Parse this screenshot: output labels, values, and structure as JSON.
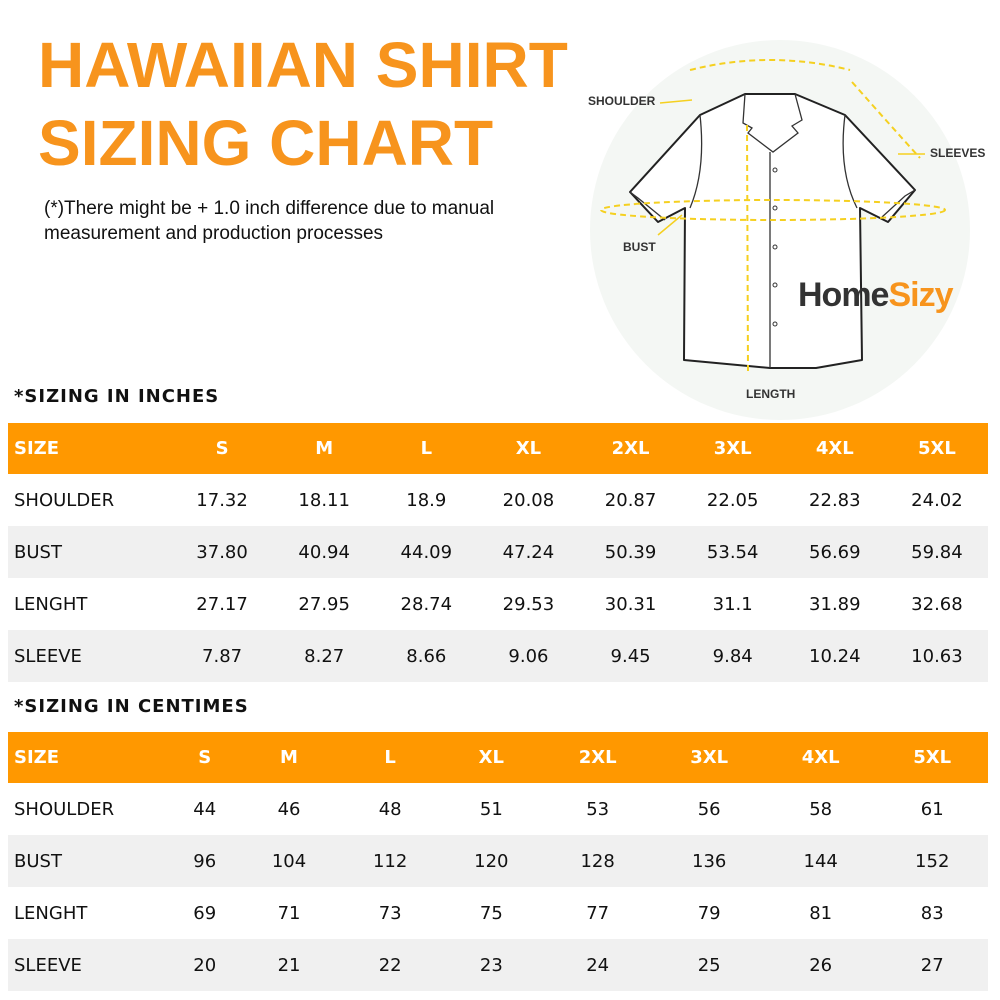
{
  "title": {
    "line1": "HAWAIIAN SHIRT",
    "line2": "SIZING CHART"
  },
  "note": "(*)There might be + 1.0 inch difference due to manual measurement and production processes",
  "illustration": {
    "labels": {
      "shoulder": "SHOULDER",
      "sleeves": "SLEEVES",
      "bust": "BUST",
      "length": "LENGTH"
    },
    "logo": {
      "part1": "Home",
      "part2": "Sizy"
    }
  },
  "colors": {
    "accent": "#ff9800",
    "title": "#f7941d",
    "measure_line": "#f5d020"
  },
  "tables": [
    {
      "title": "*SIZING IN INCHES",
      "headers": [
        "SIZE",
        "S",
        "M",
        "L",
        "XL",
        "2XL",
        "3XL",
        "4XL",
        "5XL"
      ],
      "rows": [
        [
          "SHOULDER",
          "17.32",
          "18.11",
          "18.9",
          "20.08",
          "20.87",
          "22.05",
          "22.83",
          "24.02"
        ],
        [
          "BUST",
          "37.80",
          "40.94",
          "44.09",
          "47.24",
          "50.39",
          "53.54",
          "56.69",
          "59.84"
        ],
        [
          "LENGHT",
          "27.17",
          "27.95",
          "28.74",
          "29.53",
          "30.31",
          "31.1",
          "31.89",
          "32.68"
        ],
        [
          "SLEEVE",
          "7.87",
          "8.27",
          "8.66",
          "9.06",
          "9.45",
          "9.84",
          "10.24",
          "10.63"
        ]
      ]
    },
    {
      "title": "*SIZING IN CENTIMES",
      "headers": [
        "SIZE",
        "S",
        "M",
        "L",
        "XL",
        "2XL",
        "3XL",
        "4XL",
        "5XL"
      ],
      "rows": [
        [
          "SHOULDER",
          "44",
          "46",
          "48",
          "51",
          "53",
          "56",
          "58",
          "61"
        ],
        [
          "BUST",
          "96",
          "104",
          "112",
          "120",
          "128",
          "136",
          "144",
          "152"
        ],
        [
          "LENGHT",
          "69",
          "71",
          "73",
          "75",
          "77",
          "79",
          "81",
          "83"
        ],
        [
          "SLEEVE",
          "20",
          "21",
          "22",
          "23",
          "24",
          "25",
          "26",
          "27"
        ]
      ]
    }
  ]
}
